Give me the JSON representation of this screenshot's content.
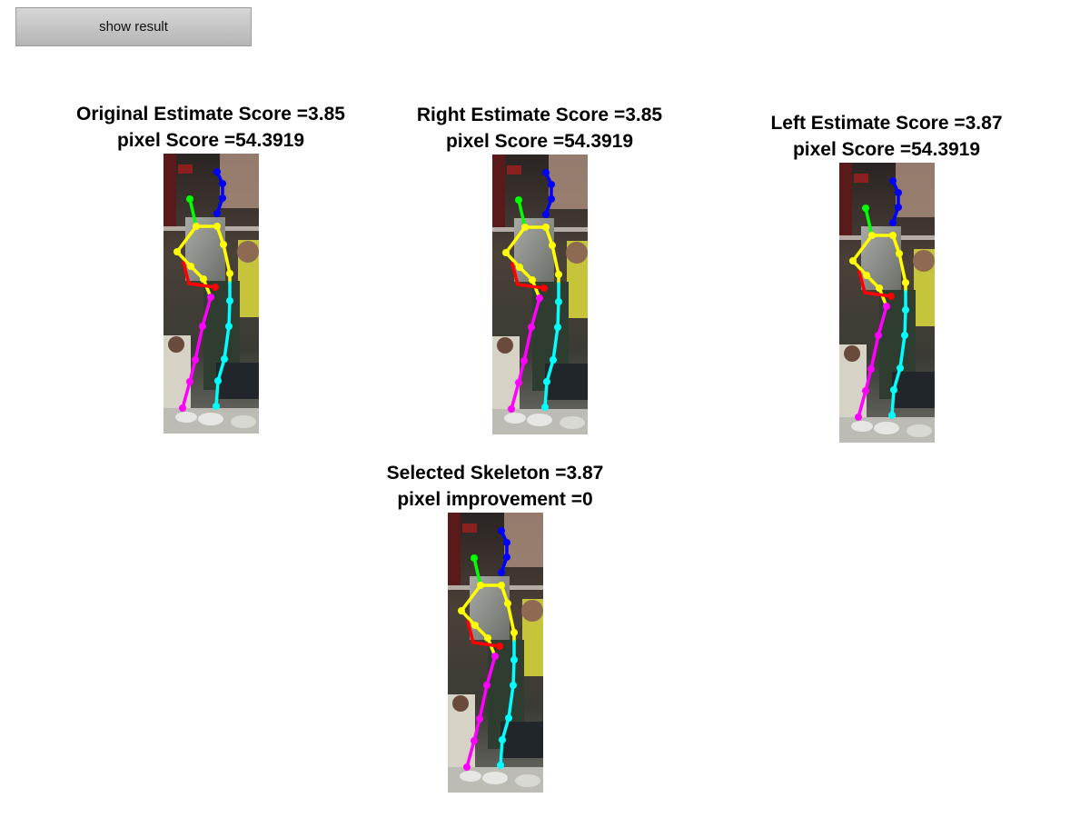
{
  "toolbar": {
    "show_result_label": "show result"
  },
  "panels": {
    "original": {
      "title": "Original Estimate Score =3.85",
      "subtitle": "pixel Score =54.3919"
    },
    "right": {
      "title": "Right Estimate Score =3.85",
      "subtitle": "pixel Score =54.3919"
    },
    "left": {
      "title": "Left Estimate Score =3.87",
      "subtitle": "pixel Score =54.3919"
    },
    "selected": {
      "title": "Selected Skeleton =3.87",
      "subtitle": "pixel improvement =0"
    }
  },
  "colors": {
    "head": "#0000ff",
    "right_arm": "#00ff00",
    "torso": "#ffff00",
    "left_arm": "#ff0000",
    "left_leg": "#ff00ff",
    "right_leg": "#00ffff"
  }
}
